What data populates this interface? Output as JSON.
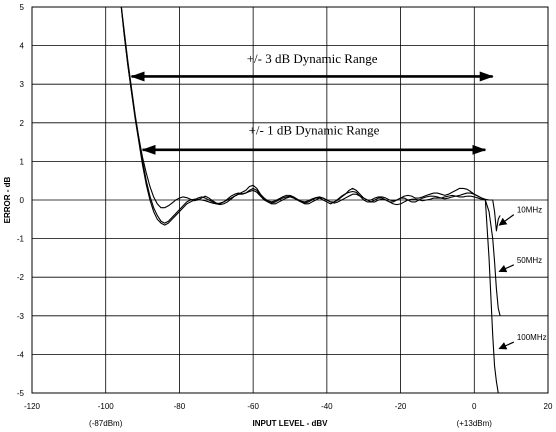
{
  "chart_data": {
    "type": "line",
    "title": "",
    "xlabel": "INPUT LEVEL - dBV",
    "ylabel": "ERROR - dB",
    "xlim": [
      -120,
      20
    ],
    "ylim": [
      -5,
      5
    ],
    "grid": true,
    "x_ticks": [
      -120,
      -100,
      -80,
      -60,
      -40,
      -20,
      0,
      20
    ],
    "y_ticks": [
      5,
      4,
      3,
      2,
      1,
      0,
      -1,
      -2,
      -3,
      -4,
      -5
    ],
    "x_tick_labels": [
      "-120",
      "-100",
      "-80",
      "-60",
      "-40",
      "-20",
      "0",
      "20"
    ],
    "y_tick_labels": [
      "5",
      "4",
      "3",
      "2",
      "1",
      "0",
      "-1",
      "-2",
      "-3",
      "-4",
      "-5"
    ],
    "x_sublabels": [
      {
        "x": -100,
        "text": "(-87dBm)"
      },
      {
        "x": 0,
        "text": "(+13dBm)"
      }
    ],
    "ranges": [
      {
        "label": "+/- 3 dB Dynamic Range",
        "x_start": -93,
        "x_end": 5,
        "y": 3.2,
        "label_y": 3.55
      },
      {
        "label": "+/- 1 dB Dynamic Range",
        "x_start": -90,
        "x_end": 3,
        "y": 1.3,
        "label_y": 1.7
      }
    ],
    "series": [
      {
        "name": "10MHz",
        "x": [
          -96,
          -95,
          -94,
          -93,
          -92,
          -91,
          -90,
          -89,
          -88,
          -87,
          -86,
          -85,
          -84,
          -83,
          -82,
          -81,
          -80,
          -79,
          -78,
          -77,
          -76,
          -75,
          -74,
          -73,
          -72,
          -71,
          -70,
          -69,
          -68,
          -67,
          -66,
          -65,
          -64,
          -63,
          -62,
          -61,
          -60,
          -59,
          -58,
          -57,
          -56,
          -55,
          -54,
          -53,
          -52,
          -51,
          -50,
          -49,
          -48,
          -47,
          -46,
          -45,
          -44,
          -43,
          -42,
          -41,
          -40,
          -39,
          -38,
          -37,
          -36,
          -35,
          -34,
          -33,
          -32,
          -31,
          -30,
          -29,
          -28,
          -27,
          -26,
          -25,
          -24,
          -23,
          -22,
          -21,
          -20,
          -19,
          -18,
          -17,
          -16,
          -15,
          -14,
          -13,
          -12,
          -11,
          -10,
          -9,
          -8,
          -7,
          -6,
          -5,
          -4,
          -3,
          -2,
          -1,
          0,
          1,
          2,
          3,
          4,
          5,
          5.5,
          6,
          6.5,
          7
        ],
        "y": [
          5.2,
          4.3,
          3.5,
          2.8,
          2.15,
          1.6,
          1.1,
          0.7,
          0.35,
          0.08,
          -0.1,
          -0.2,
          -0.2,
          -0.15,
          -0.08,
          0.0,
          0.05,
          0.08,
          0.06,
          0.02,
          -0.02,
          0.0,
          0.05,
          0.1,
          0.05,
          -0.02,
          -0.08,
          -0.1,
          -0.05,
          0.02,
          0.1,
          0.15,
          0.18,
          0.16,
          0.18,
          0.25,
          0.3,
          0.25,
          0.12,
          0.02,
          -0.05,
          -0.08,
          -0.05,
          0.0,
          0.05,
          0.08,
          0.1,
          0.05,
          0.0,
          -0.05,
          -0.08,
          -0.05,
          0.0,
          0.05,
          0.05,
          0.0,
          -0.05,
          -0.1,
          -0.05,
          0.02,
          0.1,
          0.16,
          0.2,
          0.22,
          0.2,
          0.1,
          0.0,
          -0.05,
          -0.05,
          0.0,
          0.05,
          0.05,
          0.0,
          -0.05,
          -0.05,
          0.0,
          0.05,
          0.05,
          0.0,
          -0.05,
          -0.05,
          0.0,
          0.05,
          0.08,
          0.1,
          0.1,
          0.08,
          0.05,
          0.03,
          0.05,
          0.08,
          0.1,
          0.12,
          0.15,
          0.18,
          0.18,
          0.15,
          0.1,
          0.05,
          0.02,
          0.0,
          0.0,
          -0.3,
          -0.8,
          -0.5,
          -0.4
        ]
      },
      {
        "name": "50MHz",
        "x": [
          -96,
          -95,
          -94,
          -93,
          -92,
          -91,
          -90,
          -89,
          -88,
          -87,
          -86,
          -85,
          -84,
          -83,
          -82,
          -81,
          -80,
          -79,
          -78,
          -77,
          -76,
          -75,
          -74,
          -73,
          -72,
          -71,
          -70,
          -69,
          -68,
          -67,
          -66,
          -65,
          -64,
          -63,
          -62,
          -61,
          -60,
          -59,
          -58,
          -57,
          -56,
          -55,
          -54,
          -53,
          -52,
          -51,
          -50,
          -49,
          -48,
          -47,
          -46,
          -45,
          -44,
          -43,
          -42,
          -41,
          -40,
          -39,
          -38,
          -37,
          -36,
          -35,
          -34,
          -33,
          -32,
          -31,
          -30,
          -29,
          -28,
          -27,
          -26,
          -25,
          -24,
          -23,
          -22,
          -21,
          -20,
          -19,
          -18,
          -17,
          -16,
          -15,
          -14,
          -13,
          -12,
          -11,
          -10,
          -9,
          -8,
          -7,
          -6,
          -5,
          -4,
          -3,
          -2,
          -1,
          0,
          1,
          2,
          3,
          4,
          5,
          5.5,
          6,
          6.5,
          7
        ],
        "y": [
          5.2,
          4.4,
          3.6,
          2.9,
          2.2,
          1.6,
          1.0,
          0.5,
          0.1,
          -0.2,
          -0.4,
          -0.55,
          -0.6,
          -0.55,
          -0.45,
          -0.35,
          -0.25,
          -0.15,
          -0.05,
          0.0,
          0.02,
          0.02,
          0.0,
          -0.02,
          -0.05,
          -0.08,
          -0.1,
          -0.08,
          -0.05,
          0.0,
          0.05,
          0.1,
          0.15,
          0.15,
          0.18,
          0.22,
          0.25,
          0.2,
          0.1,
          0.0,
          -0.05,
          -0.1,
          -0.1,
          -0.05,
          0.0,
          0.05,
          0.08,
          0.05,
          0.0,
          -0.05,
          -0.1,
          -0.1,
          -0.05,
          0.0,
          0.05,
          0.05,
          0.0,
          -0.05,
          -0.08,
          -0.05,
          0.0,
          0.05,
          0.1,
          0.15,
          0.15,
          0.1,
          0.05,
          0.0,
          -0.05,
          -0.05,
          0.0,
          0.02,
          0.0,
          -0.05,
          -0.1,
          -0.12,
          -0.1,
          -0.05,
          0.0,
          0.02,
          0.02,
          0.0,
          -0.02,
          0.0,
          0.02,
          0.05,
          0.05,
          0.05,
          0.08,
          0.1,
          0.12,
          0.1,
          0.08,
          0.08,
          0.1,
          0.1,
          0.08,
          0.05,
          0.02,
          0.0,
          -0.3,
          -1.0,
          -1.6,
          -2.3,
          -2.8,
          -3.0
        ]
      },
      {
        "name": "100MHz",
        "x": [
          -96,
          -95,
          -94,
          -93,
          -92,
          -91,
          -90,
          -89,
          -88,
          -87,
          -86,
          -85,
          -84,
          -83,
          -82,
          -81,
          -80,
          -79,
          -78,
          -77,
          -76,
          -75,
          -74,
          -73,
          -72,
          -71,
          -70,
          -69,
          -68,
          -67,
          -66,
          -65,
          -64,
          -63,
          -62,
          -61,
          -60,
          -59,
          -58,
          -57,
          -56,
          -55,
          -54,
          -53,
          -52,
          -51,
          -50,
          -49,
          -48,
          -47,
          -46,
          -45,
          -44,
          -43,
          -42,
          -41,
          -40,
          -39,
          -38,
          -37,
          -36,
          -35,
          -34,
          -33,
          -32,
          -31,
          -30,
          -29,
          -28,
          -27,
          -26,
          -25,
          -24,
          -23,
          -22,
          -21,
          -20,
          -19,
          -18,
          -17,
          -16,
          -15,
          -14,
          -13,
          -12,
          -11,
          -10,
          -9,
          -8,
          -7,
          -6,
          -5,
          -4,
          -3,
          -2,
          -1,
          0,
          1,
          2,
          3,
          4,
          5,
          5.5,
          6,
          6.5,
          7
        ],
        "y": [
          5.2,
          4.3,
          3.5,
          2.8,
          2.1,
          1.5,
          0.9,
          0.4,
          0.0,
          -0.3,
          -0.5,
          -0.6,
          -0.65,
          -0.6,
          -0.5,
          -0.4,
          -0.3,
          -0.2,
          -0.1,
          -0.05,
          0.0,
          0.05,
          0.08,
          0.05,
          0.0,
          -0.05,
          -0.1,
          -0.12,
          -0.1,
          -0.05,
          0.02,
          0.1,
          0.15,
          0.2,
          0.25,
          0.35,
          0.38,
          0.3,
          0.15,
          0.05,
          -0.02,
          -0.05,
          -0.02,
          0.03,
          0.08,
          0.12,
          0.12,
          0.08,
          0.02,
          -0.03,
          -0.05,
          -0.02,
          0.03,
          0.06,
          0.08,
          0.05,
          0.0,
          -0.05,
          -0.05,
          0.0,
          0.08,
          0.15,
          0.25,
          0.3,
          0.25,
          0.15,
          0.05,
          0.0,
          0.0,
          0.05,
          0.08,
          0.08,
          0.05,
          0.0,
          -0.02,
          0.0,
          0.05,
          0.1,
          0.12,
          0.1,
          0.05,
          0.05,
          0.08,
          0.12,
          0.15,
          0.18,
          0.18,
          0.15,
          0.12,
          0.15,
          0.2,
          0.25,
          0.3,
          0.3,
          0.28,
          0.22,
          0.15,
          0.1,
          0.05,
          0.0,
          -1.5,
          -3.5,
          -4.3,
          -4.7,
          -5.0,
          -5.0
        ]
      }
    ],
    "annotations": [
      {
        "text": "10MHz",
        "series": "10MHz",
        "label_x": 11,
        "label_y": -0.25,
        "tip_x": 6.8,
        "tip_y": -0.65
      },
      {
        "text": "50MHz",
        "series": "50MHz",
        "label_x": 11,
        "label_y": -1.55,
        "tip_x": 6.8,
        "tip_y": -1.85
      },
      {
        "text": "100MHz",
        "series": "100MHz",
        "label_x": 11,
        "label_y": -3.55,
        "tip_x": 6.8,
        "tip_y": -3.85
      }
    ]
  }
}
